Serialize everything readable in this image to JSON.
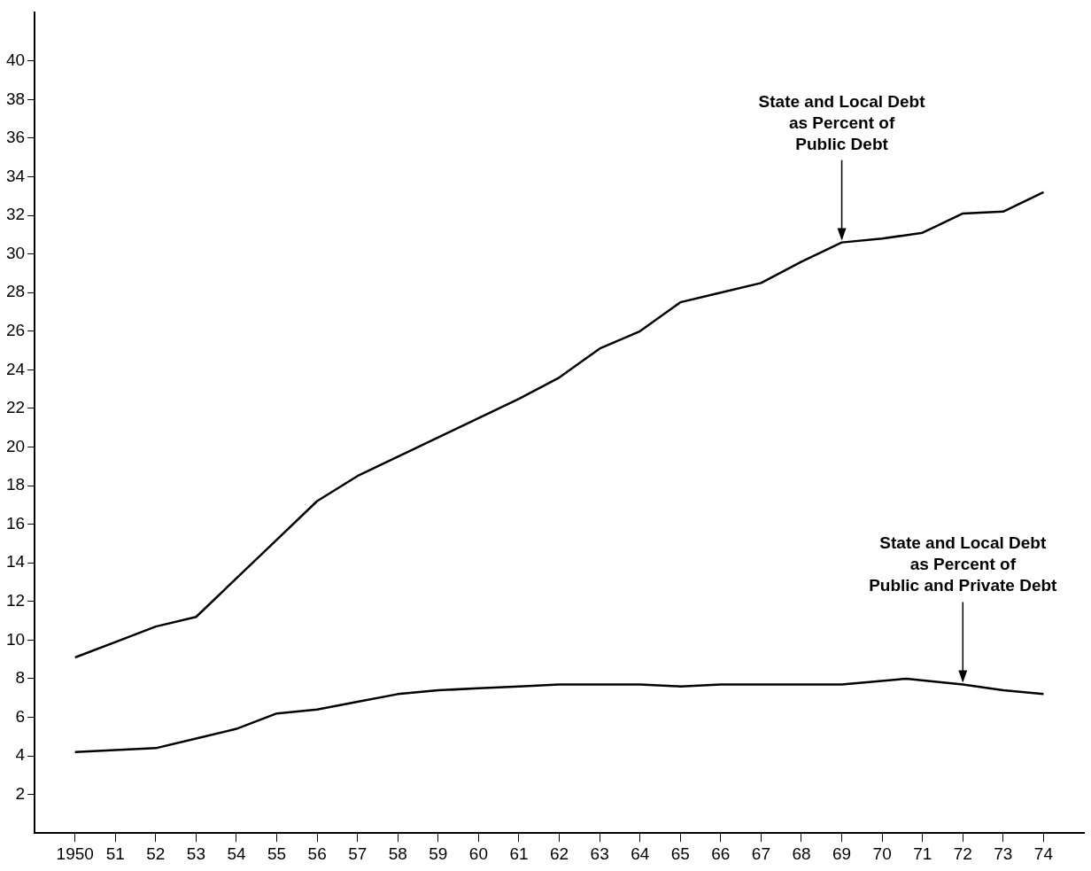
{
  "chart_data": {
    "type": "line",
    "xlim": [
      1949,
      1975
    ],
    "xticks": [
      {
        "value": 1950,
        "label": "1950"
      },
      {
        "value": 1951,
        "label": "51"
      },
      {
        "value": 1952,
        "label": "52"
      },
      {
        "value": 1953,
        "label": "53"
      },
      {
        "value": 1954,
        "label": "54"
      },
      {
        "value": 1955,
        "label": "55"
      },
      {
        "value": 1956,
        "label": "56"
      },
      {
        "value": 1957,
        "label": "57"
      },
      {
        "value": 1958,
        "label": "58"
      },
      {
        "value": 1959,
        "label": "59"
      },
      {
        "value": 1960,
        "label": "60"
      },
      {
        "value": 1961,
        "label": "61"
      },
      {
        "value": 1962,
        "label": "62"
      },
      {
        "value": 1963,
        "label": "63"
      },
      {
        "value": 1964,
        "label": "64"
      },
      {
        "value": 1965,
        "label": "65"
      },
      {
        "value": 1966,
        "label": "66"
      },
      {
        "value": 1967,
        "label": "67"
      },
      {
        "value": 1968,
        "label": "68"
      },
      {
        "value": 1969,
        "label": "69"
      },
      {
        "value": 1970,
        "label": "70"
      },
      {
        "value": 1971,
        "label": "71"
      },
      {
        "value": 1972,
        "label": "72"
      },
      {
        "value": 1973,
        "label": "73"
      },
      {
        "value": 1974,
        "label": "74"
      }
    ],
    "ylim": [
      0,
      42.5
    ],
    "yticks": [
      2,
      4,
      6,
      8,
      10,
      12,
      14,
      16,
      18,
      20,
      22,
      24,
      26,
      28,
      30,
      32,
      34,
      36,
      38,
      40
    ],
    "series": [
      {
        "color": "#000000",
        "x": [
          1950,
          1951,
          1952,
          1953,
          1954,
          1955,
          1956,
          1957,
          1958,
          1959,
          1960,
          1961,
          1962,
          1963,
          1964,
          1965,
          1966,
          1967,
          1968,
          1969,
          1970,
          1971,
          1972,
          1973,
          1974
        ],
        "values": [
          9.1,
          9.9,
          10.7,
          11.2,
          13.2,
          15.2,
          17.2,
          18.5,
          19.5,
          20.5,
          21.5,
          22.5,
          23.6,
          25.1,
          26.0,
          27.5,
          28.0,
          28.5,
          29.6,
          30.6,
          30.8,
          31.1,
          32.1,
          32.2,
          33.2
        ]
      },
      {
        "color": "#000000",
        "x": [
          1950,
          1951,
          1952,
          1953,
          1954,
          1955,
          1956,
          1957,
          1958,
          1959,
          1960,
          1961,
          1962,
          1963,
          1964,
          1965,
          1966,
          1967,
          1968,
          1969,
          1970.6,
          1972,
          1973,
          1974
        ],
        "values": [
          4.2,
          4.3,
          4.4,
          4.9,
          5.4,
          6.2,
          6.4,
          6.8,
          7.2,
          7.4,
          7.5,
          7.6,
          7.7,
          7.7,
          7.7,
          7.6,
          7.7,
          7.7,
          7.7,
          7.7,
          8.0,
          7.7,
          7.4,
          7.2
        ]
      }
    ],
    "annotations": [
      {
        "text": "State and Local Debt\nas Percent of\nPublic Debt",
        "x": 1969,
        "y": 30.6
      },
      {
        "text": "State and Local Debt\nas Percent of\nPublic and Private Debt",
        "x": 1972,
        "y": 7.7
      }
    ],
    "marker": "none",
    "line_style": "solid",
    "grid": false,
    "legend": false
  }
}
